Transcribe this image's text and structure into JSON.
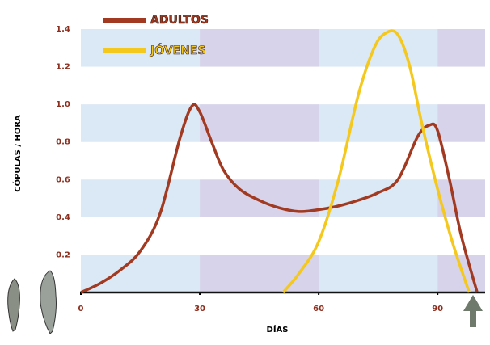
{
  "chart_data": {
    "type": "line",
    "x_label": "DÍAS",
    "y_label": "CÓPULAS / HORA",
    "xlim": [
      0,
      102
    ],
    "ylim": [
      0,
      1.4
    ],
    "xticks": [
      0,
      30,
      60,
      90
    ],
    "yticks": [
      0.2,
      0.4,
      0.6,
      0.8,
      {
        "value": 1,
        "label": "1.0"
      },
      1.2,
      1.4
    ],
    "legend": "top-left",
    "series": [
      {
        "name": "ADULTOS",
        "color": "#a23a22",
        "x": [
          0,
          5,
          10,
          15,
          20,
          25,
          28,
          30,
          33,
          36,
          40,
          45,
          50,
          55,
          60,
          65,
          70,
          75,
          80,
          85,
          88,
          90,
          93,
          96,
          100
        ],
        "values": [
          0,
          0.05,
          0.12,
          0.22,
          0.42,
          0.82,
          0.99,
          0.96,
          0.8,
          0.65,
          0.55,
          0.49,
          0.45,
          0.43,
          0.44,
          0.46,
          0.49,
          0.53,
          0.6,
          0.83,
          0.89,
          0.86,
          0.6,
          0.3,
          0
        ]
      },
      {
        "name": "JÓVENES",
        "color": "#f4c81c",
        "x": [
          51,
          55,
          60,
          65,
          70,
          74,
          77,
          80,
          83,
          86,
          90,
          94,
          98
        ],
        "values": [
          0,
          0.1,
          0.27,
          0.6,
          1.05,
          1.3,
          1.38,
          1.37,
          1.2,
          0.9,
          0.55,
          0.25,
          0
        ]
      }
    ]
  }
}
